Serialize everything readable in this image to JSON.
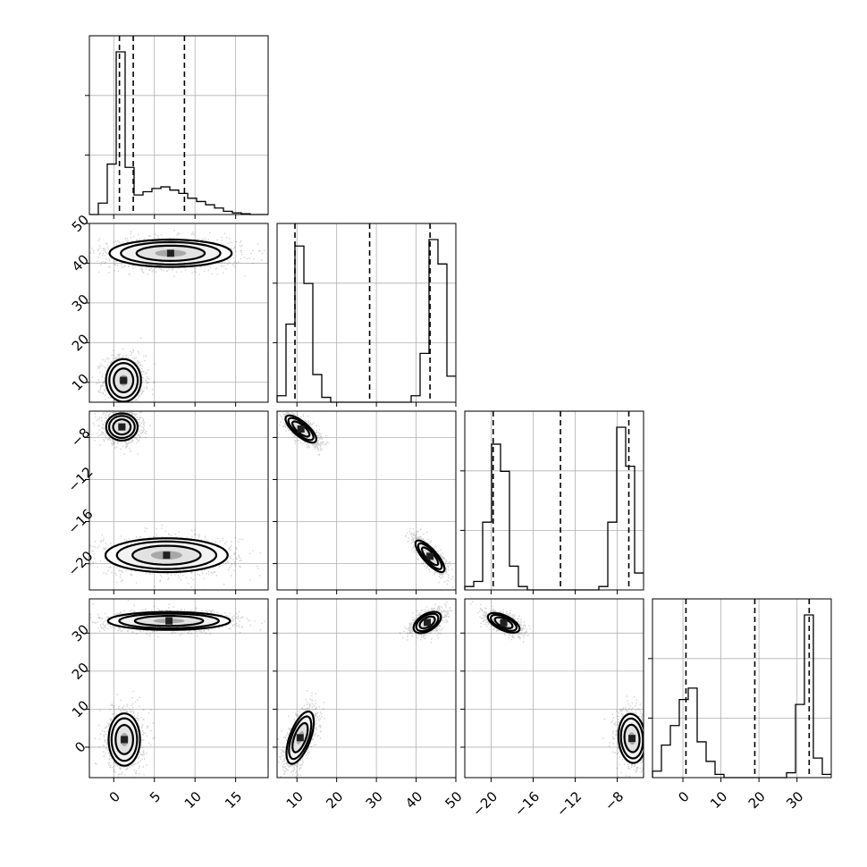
{
  "chart_data": {
    "type": "corner",
    "grid": true,
    "parameters": [
      {
        "range": [
          -3,
          19
        ],
        "ticks": [
          0,
          5,
          10,
          15
        ],
        "tick_labels": [
          "0",
          "5",
          "10",
          "15"
        ],
        "quantiles": [
          0.7,
          2.4,
          8.7
        ],
        "hist_edges": [
          -3,
          -1.9,
          -0.8,
          0.3,
          1.4,
          2.5,
          3.6,
          4.7,
          5.8,
          6.9,
          8.0,
          9.1,
          10.2,
          11.3,
          12.4,
          13.5,
          14.6,
          15.7,
          16.8,
          17.9,
          19
        ],
        "hist_counts": [
          0,
          0.07,
          0.31,
          1.0,
          0.29,
          0.12,
          0.14,
          0.16,
          0.17,
          0.15,
          0.13,
          0.1,
          0.08,
          0.06,
          0.04,
          0.02,
          0.01,
          0.005,
          0,
          0
        ]
      },
      {
        "range": [
          5,
          50
        ],
        "ticks": [
          10,
          20,
          30,
          40,
          50
        ],
        "tick_labels": [
          "10",
          "20",
          "30",
          "40",
          "50"
        ],
        "quantiles": [
          9.5,
          28.3,
          43.5
        ],
        "hist_edges": [
          5,
          7.25,
          9.5,
          11.75,
          14,
          16.25,
          18.5,
          20.75,
          23,
          25.25,
          27.5,
          29.75,
          32,
          34.25,
          36.5,
          38.75,
          41,
          43.25,
          45.5,
          47.75,
          50
        ],
        "hist_counts": [
          0.04,
          0.48,
          0.96,
          0.73,
          0.17,
          0.03,
          0,
          0,
          0,
          0,
          0,
          0,
          0,
          0,
          0,
          0.04,
          0.3,
          1.0,
          0.85,
          0.16
        ]
      },
      {
        "range": [
          -22.5,
          -5.5
        ],
        "ticks": [
          -20,
          -16,
          -12,
          -8
        ],
        "tick_labels": [
          "−20",
          "−16",
          "−12",
          "−8"
        ],
        "quantiles": [
          -19.8,
          -13.4,
          -6.9
        ],
        "hist_edges": [
          -22.5,
          -21.65,
          -20.8,
          -19.95,
          -19.1,
          -18.25,
          -17.4,
          -16.55,
          -15.7,
          -14.85,
          -14.0,
          -13.15,
          -12.3,
          -11.45,
          -10.6,
          -9.75,
          -8.9,
          -8.05,
          -7.2,
          -6.35,
          -5.5
        ],
        "hist_counts": [
          0.02,
          0.05,
          0.4,
          0.86,
          0.7,
          0.14,
          0.02,
          0,
          0,
          0,
          0,
          0,
          0,
          0,
          0,
          0.02,
          0.4,
          0.96,
          0.73,
          0.1
        ]
      },
      {
        "range": [
          -8,
          39
        ],
        "ticks": [
          0,
          10,
          20,
          30
        ],
        "tick_labels": [
          "0",
          "10",
          "20",
          "30"
        ],
        "quantiles": [
          0.8,
          18.9,
          33.2
        ],
        "hist_edges": [
          -8,
          -5.65,
          -3.3,
          -0.95,
          1.4,
          3.75,
          6.1,
          8.45,
          10.8,
          13.15,
          15.5,
          17.85,
          20.2,
          22.55,
          24.9,
          27.25,
          29.6,
          31.95,
          34.3,
          36.65,
          39
        ],
        "hist_counts": [
          0.04,
          0.2,
          0.32,
          0.48,
          0.55,
          0.22,
          0.1,
          0.02,
          0,
          0,
          0,
          0,
          0,
          0,
          0,
          0.03,
          0.45,
          1.0,
          0.12,
          0.02
        ]
      }
    ],
    "pairs": [
      {
        "x": 0,
        "y": 1,
        "clusters": [
          {
            "center": [
              1.2,
              10.5
            ],
            "sd": [
              1.0,
              2.5
            ],
            "rho": 0
          },
          {
            "center": [
              7.0,
              42.5
            ],
            "sd": [
              3.5,
              1.6
            ],
            "rho": 0
          }
        ]
      },
      {
        "x": 0,
        "y": 2,
        "clusters": [
          {
            "center": [
              1.0,
              -7.0
            ],
            "sd": [
              0.9,
              0.6
            ],
            "rho": 0
          },
          {
            "center": [
              6.5,
              -19.2
            ],
            "sd": [
              3.5,
              0.75
            ],
            "rho": 0
          }
        ]
      },
      {
        "x": 1,
        "y": 2,
        "clusters": [
          {
            "center": [
              11.0,
              -7.2
            ],
            "sd": [
              1.8,
              0.6
            ],
            "rho": -0.75
          },
          {
            "center": [
              43.5,
              -19.3
            ],
            "sd": [
              1.7,
              0.7
            ],
            "rho": -0.8
          }
        ]
      },
      {
        "x": 0,
        "y": 3,
        "clusters": [
          {
            "center": [
              1.3,
              2.0
            ],
            "sd": [
              0.9,
              3.2
            ],
            "rho": 0
          },
          {
            "center": [
              6.8,
              33.2
            ],
            "sd": [
              3.5,
              1.1
            ],
            "rho": 0
          }
        ]
      },
      {
        "x": 1,
        "y": 3,
        "clusters": [
          {
            "center": [
              10.8,
              2.5
            ],
            "sd": [
              1.6,
              3.2
            ],
            "rho": 0.6
          },
          {
            "center": [
              42.8,
              32.8
            ],
            "sd": [
              1.6,
              1.3
            ],
            "rho": 0.5
          }
        ]
      },
      {
        "x": 2,
        "y": 3,
        "clusters": [
          {
            "center": [
              -18.8,
              32.7
            ],
            "sd": [
              0.7,
              1.2
            ],
            "rho": -0.6
          },
          {
            "center": [
              -6.6,
              2.3
            ],
            "sd": [
              0.6,
              3.0
            ],
            "rho": -0.1
          }
        ]
      }
    ]
  }
}
